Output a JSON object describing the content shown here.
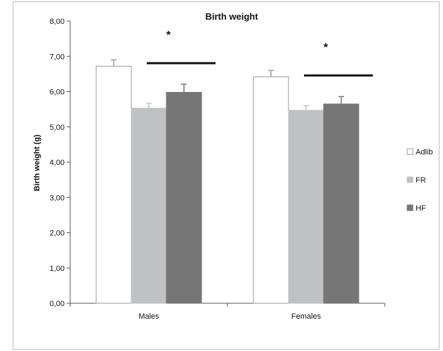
{
  "chart_data": {
    "type": "bar",
    "title": "Birth weight",
    "xlabel": "",
    "ylabel": "Birth weight (g)",
    "ylim": [
      0,
      8
    ],
    "yticks": [
      "0,00",
      "1,00",
      "2,00",
      "3,00",
      "4,00",
      "5,00",
      "6,00",
      "7,00",
      "8,00"
    ],
    "categories": [
      "Males",
      "Females"
    ],
    "series": [
      {
        "name": "Adlib",
        "values": [
          6.72,
          6.42
        ],
        "errors": [
          0.18,
          0.18
        ],
        "color": "#ffffff"
      },
      {
        "name": "FR",
        "values": [
          5.53,
          5.47
        ],
        "errors": [
          0.14,
          0.13
        ],
        "color": "#c0c1c3"
      },
      {
        "name": "HF",
        "values": [
          5.98,
          5.65
        ],
        "errors": [
          0.23,
          0.21
        ],
        "color": "#767676"
      }
    ],
    "significance": [
      {
        "category": "Males",
        "label": "*"
      },
      {
        "category": "Females",
        "label": "*"
      }
    ],
    "legend_position": "right",
    "grid": false
  }
}
